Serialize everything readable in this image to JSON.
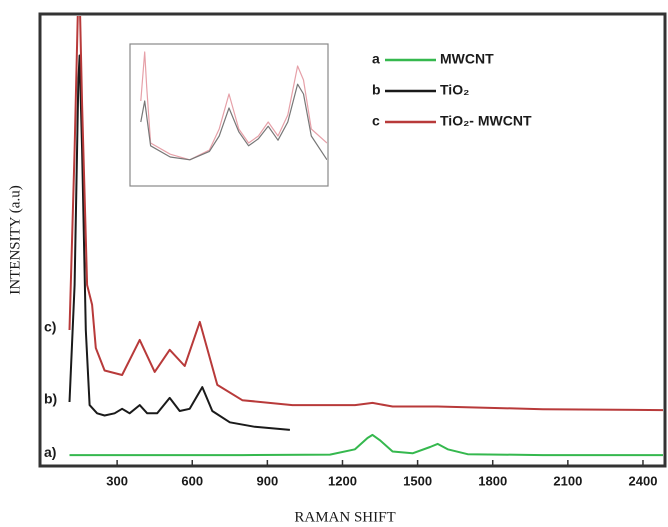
{
  "chart_data": [
    {
      "type": "line",
      "x_label": "RAMAN SHIFT",
      "y_label": "INTENSITY (a.u)",
      "xlim": [
        0,
        2480
      ],
      "xticks": [
        300,
        600,
        900,
        1200,
        1500,
        1800,
        2100,
        2400
      ],
      "ylim": [
        0,
        100
      ],
      "series": [
        {
          "label": "a",
          "name": "MWCNT",
          "annotation": "a)",
          "color": "#35b84e",
          "x": [
            110,
            400,
            800,
            1150,
            1250,
            1300,
            1320,
            1350,
            1400,
            1480,
            1550,
            1580,
            1620,
            1700,
            2000,
            2480
          ],
          "values": [
            2.2,
            2.2,
            2.2,
            2.3,
            3.5,
            6,
            6.7,
            5.5,
            3,
            2.6,
            4,
            4.7,
            3.5,
            2.4,
            2.2,
            2.2
          ]
        },
        {
          "label": "b",
          "name": "TiO₂",
          "annotation": "b)",
          "color": "#1a1a1a",
          "x": [
            110,
            130,
            145,
            150,
            160,
            175,
            190,
            220,
            250,
            290,
            320,
            350,
            390,
            420,
            460,
            510,
            550,
            590,
            640,
            680,
            750,
            850,
            990
          ],
          "values": [
            14,
            40,
            85,
            91,
            70,
            30,
            13.3,
            11.5,
            11,
            11.5,
            12.5,
            11.5,
            13.3,
            11.5,
            11.5,
            14.9,
            12,
            12.5,
            17.3,
            12,
            9.5,
            8.5,
            7.8
          ]
        },
        {
          "label": "c",
          "name": "TiO₂- MWCNT",
          "annotation": "c)",
          "color": "#b83a3a",
          "x": [
            110,
            130,
            145,
            150,
            160,
            180,
            200,
            215,
            250,
            320,
            390,
            450,
            510,
            570,
            630,
            700,
            800,
            1000,
            1250,
            1320,
            1400,
            1580,
            2000,
            2480
          ],
          "values": [
            30,
            70,
            105,
            105,
            80,
            40,
            35.6,
            26,
            21,
            20,
            27.8,
            20.7,
            25.6,
            22,
            31.8,
            17.8,
            14.4,
            13.3,
            13.3,
            13.8,
            13,
            13,
            12.4,
            12.2
          ]
        }
      ]
    },
    {
      "type": "line",
      "xlim": [
        0,
        100
      ],
      "ylim": [
        0,
        100
      ],
      "series": [
        {
          "color": "#e6a0a8",
          "x": [
            5,
            7,
            8,
            10,
            20,
            30,
            40,
            45,
            50,
            55,
            60,
            65,
            70,
            75,
            80,
            85,
            88,
            92,
            100
          ],
          "values": [
            60,
            95,
            70,
            30,
            22,
            18,
            25,
            40,
            65,
            40,
            30,
            35,
            45,
            35,
            50,
            85,
            75,
            40,
            30
          ]
        },
        {
          "color": "#777777",
          "x": [
            5,
            7,
            10,
            20,
            30,
            40,
            45,
            50,
            55,
            60,
            65,
            70,
            75,
            80,
            85,
            88,
            92,
            100
          ],
          "values": [
            45,
            60,
            28,
            20,
            18,
            24,
            35,
            55,
            38,
            28,
            33,
            42,
            32,
            45,
            72,
            65,
            35,
            18
          ]
        }
      ]
    }
  ]
}
